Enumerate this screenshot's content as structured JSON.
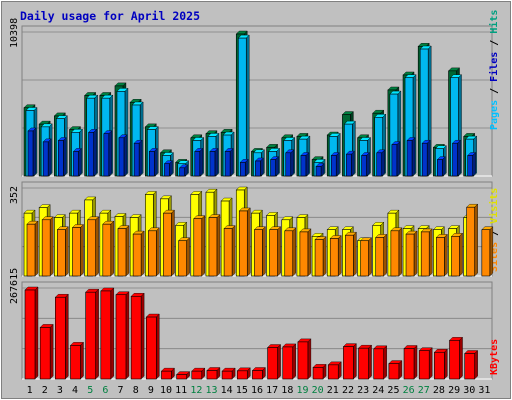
{
  "chart_data": [
    {
      "type": "bar",
      "title": "Daily usage for April 2025",
      "categories": [
        "1",
        "2",
        "3",
        "4",
        "5",
        "6",
        "7",
        "8",
        "9",
        "10",
        "11",
        "12",
        "13",
        "14",
        "15",
        "16",
        "17",
        "18",
        "19",
        "20",
        "21",
        "22",
        "23",
        "24",
        "25",
        "26",
        "27",
        "28",
        "29",
        "30",
        "31"
      ],
      "weekend_days": [
        "5",
        "6",
        "12",
        "13",
        "19",
        "20",
        "26",
        "27"
      ],
      "ymax_tick": "10398",
      "ylabel_parts": [
        "Pages",
        "Files",
        "Hits"
      ],
      "series": [
        {
          "name": "Hits",
          "color": "#006633",
          "values": [
            5000,
            3800,
            4400,
            3400,
            5900,
            5900,
            6600,
            5400,
            3600,
            1700,
            1000,
            2800,
            3100,
            3200,
            10400,
            1800,
            2100,
            2800,
            2900,
            1200,
            3000,
            4500,
            2800,
            4600,
            6300,
            7400,
            9500,
            2100,
            7700,
            2900,
            0
          ]
        },
        {
          "name": "Files",
          "color": "#00b8f0",
          "values": [
            4800,
            3600,
            4200,
            3200,
            5700,
            5700,
            6200,
            5200,
            3400,
            1500,
            900,
            2600,
            2900,
            3000,
            10100,
            1700,
            1800,
            2600,
            2700,
            1000,
            2900,
            3800,
            2600,
            4300,
            6000,
            7200,
            9300,
            2000,
            7200,
            2700,
            0
          ]
        },
        {
          "name": "Pages",
          "color": "#0033cc",
          "values": [
            3300,
            2500,
            2600,
            1800,
            3200,
            3100,
            2800,
            2400,
            1800,
            900,
            600,
            1800,
            1800,
            1800,
            1000,
            1100,
            1200,
            1700,
            1500,
            700,
            1500,
            1600,
            1500,
            1700,
            2300,
            2600,
            2400,
            1200,
            2400,
            1500,
            0
          ]
        }
      ]
    },
    {
      "type": "bar",
      "ymax_tick": "352",
      "ylabel_parts": [
        "Sites",
        "Visits"
      ],
      "series": [
        {
          "name": "Visits",
          "color": "#ffff00",
          "values": [
            285,
            310,
            265,
            285,
            345,
            285,
            270,
            265,
            370,
            350,
            230,
            370,
            380,
            340,
            390,
            285,
            275,
            255,
            265,
            180,
            210,
            210,
            160,
            230,
            285,
            215,
            215,
            210,
            215,
            265,
            0
          ]
        },
        {
          "name": "Sites",
          "color": "#ff8800",
          "values": [
            235,
            255,
            210,
            220,
            255,
            235,
            215,
            190,
            205,
            285,
            160,
            260,
            265,
            215,
            295,
            210,
            210,
            205,
            200,
            165,
            170,
            185,
            160,
            175,
            205,
            190,
            200,
            175,
            180,
            312,
            210
          ]
        }
      ]
    },
    {
      "type": "bar",
      "ymax_tick": "267615",
      "ylabel_parts": [
        "KBytes"
      ],
      "series": [
        {
          "name": "KBytes",
          "color": "#ff0000",
          "values": [
            283000,
            164000,
            260000,
            107000,
            276000,
            280000,
            268000,
            263000,
            197000,
            25000,
            14000,
            25000,
            27000,
            25000,
            26000,
            27000,
            100000,
            102000,
            118000,
            37000,
            45000,
            103000,
            98000,
            96000,
            49000,
            97000,
            90000,
            85000,
            123000,
            81000,
            0
          ]
        }
      ]
    }
  ],
  "colors": {
    "bg": "#c0c0c0",
    "plot_bg": "#c0c0c0",
    "title": "#0000ff",
    "grid": "#808080",
    "weekend": "#008040",
    "weekday": "#000000"
  }
}
